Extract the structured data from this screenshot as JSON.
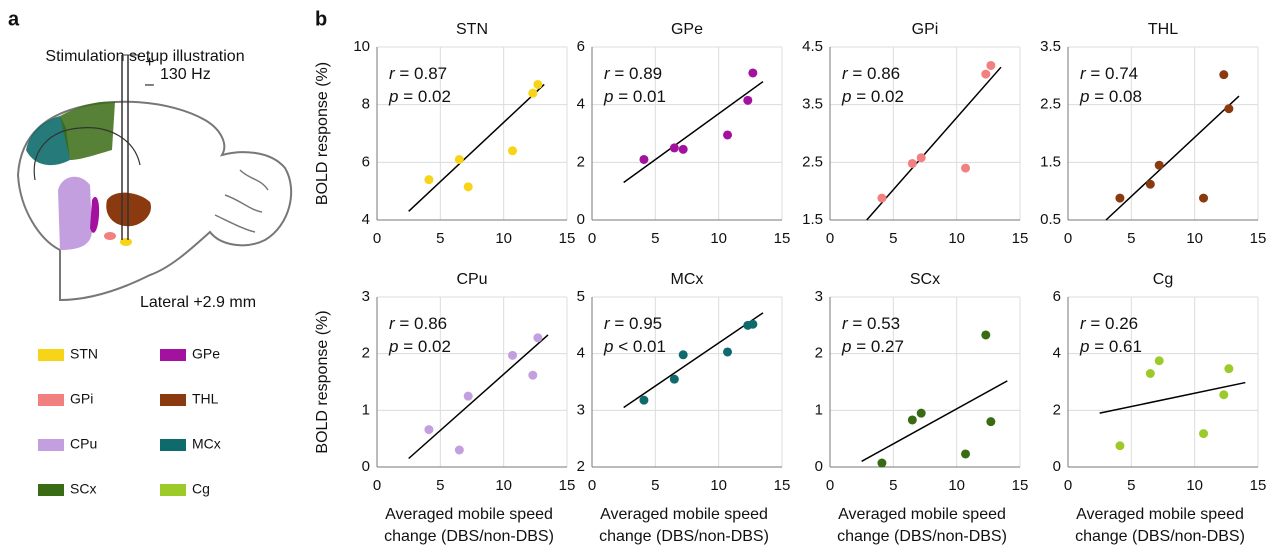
{
  "panel_a": {
    "label": "a",
    "title": "Stimulation setup illustration",
    "plus": "+",
    "minus": "–",
    "frequency": "130 Hz",
    "lateral": "Lateral +2.9 mm"
  },
  "panel_b_label": "b",
  "chart_data": [
    {
      "type": "scatter",
      "title": "STN",
      "color": "#f7d417",
      "x": [
        4.1,
        6.5,
        7.2,
        10.7,
        12.3,
        12.7
      ],
      "y": [
        5.4,
        6.1,
        5.15,
        6.4,
        8.4,
        8.7
      ],
      "fit": {
        "x": [
          2.5,
          13.2
        ],
        "y": [
          4.3,
          8.7
        ]
      },
      "xlim": [
        0,
        15
      ],
      "xticks": [
        0,
        5,
        10,
        15
      ],
      "ylim": [
        4,
        10
      ],
      "yticks": [
        4,
        6,
        8,
        10
      ],
      "annotations": [
        {
          "symbol": "r",
          "text": " = 0.87"
        },
        {
          "symbol": "p",
          "text": " = 0.02"
        }
      ],
      "ylabel": "BOLD response (%)",
      "xlabel": [
        "Averaged mobile speed",
        "change (DBS/non-DBS)"
      ],
      "grid": true
    },
    {
      "type": "scatter",
      "title": "GPe",
      "color": "#a2129e",
      "x": [
        4.1,
        6.5,
        7.2,
        10.7,
        12.3,
        12.7
      ],
      "y": [
        2.1,
        2.5,
        2.45,
        2.95,
        4.15,
        5.1
      ],
      "fit": {
        "x": [
          2.5,
          13.5
        ],
        "y": [
          1.3,
          4.8
        ]
      },
      "xlim": [
        0,
        15
      ],
      "xticks": [
        0,
        5,
        10,
        15
      ],
      "ylim": [
        0,
        6
      ],
      "yticks": [
        0,
        2,
        4,
        6
      ],
      "annotations": [
        {
          "symbol": "r",
          "text": " = 0.89"
        },
        {
          "symbol": "p",
          "text": " = 0.01"
        }
      ],
      "xlabel": [
        "Averaged mobile speed",
        "change (DBS/non-DBS)"
      ],
      "grid": true
    },
    {
      "type": "scatter",
      "title": "GPi",
      "color": "#f28080",
      "x": [
        4.1,
        6.5,
        7.2,
        10.7,
        12.3,
        12.7
      ],
      "y": [
        1.88,
        2.48,
        2.58,
        2.4,
        4.03,
        4.18
      ],
      "fit": {
        "x": [
          2.9,
          13.5
        ],
        "y": [
          1.5,
          4.15
        ]
      },
      "xlim": [
        0,
        15
      ],
      "xticks": [
        0,
        5,
        10,
        15
      ],
      "ylim": [
        1.5,
        4.5
      ],
      "yticks": [
        1.5,
        2.5,
        3.5,
        4.5
      ],
      "annotations": [
        {
          "symbol": "r",
          "text": " = 0.86"
        },
        {
          "symbol": "p",
          "text": " = 0.02"
        }
      ],
      "xlabel": [
        "Averaged mobile speed",
        "change (DBS/non-DBS)"
      ],
      "grid": true
    },
    {
      "type": "scatter",
      "title": "THL",
      "color": "#8b3a10",
      "x": [
        4.1,
        6.5,
        7.2,
        10.7,
        12.3,
        12.7
      ],
      "y": [
        0.88,
        1.12,
        1.45,
        0.88,
        3.02,
        2.43
      ],
      "fit": {
        "x": [
          3,
          13.5
        ],
        "y": [
          0.5,
          2.65
        ]
      },
      "xlim": [
        0,
        15
      ],
      "xticks": [
        0,
        5,
        10,
        15
      ],
      "ylim": [
        0.5,
        3.5
      ],
      "yticks": [
        0.5,
        1.5,
        2.5,
        3.5
      ],
      "annotations": [
        {
          "symbol": "r",
          "text": " = 0.74"
        },
        {
          "symbol": "p",
          "text": " = 0.08"
        }
      ],
      "xlabel": [
        "Averaged mobile speed",
        "change (DBS/non-DBS)"
      ],
      "grid": true
    },
    {
      "type": "scatter",
      "title": "CPu",
      "color": "#c39fe0",
      "x": [
        4.1,
        6.5,
        7.2,
        10.7,
        12.3,
        12.7
      ],
      "y": [
        0.66,
        0.3,
        1.25,
        1.97,
        1.62,
        2.28
      ],
      "fit": {
        "x": [
          2.5,
          13.5
        ],
        "y": [
          0.15,
          2.33
        ]
      },
      "xlim": [
        0,
        15
      ],
      "xticks": [
        0,
        5,
        10,
        15
      ],
      "ylim": [
        0,
        3
      ],
      "yticks": [
        0,
        1,
        2,
        3
      ],
      "annotations": [
        {
          "symbol": "r",
          "text": " = 0.86"
        },
        {
          "symbol": "p",
          "text": " = 0.02"
        }
      ],
      "ylabel": "BOLD response (%)",
      "xlabel": [
        "Averaged mobile speed",
        "change (DBS/non-DBS)"
      ],
      "grid": true
    },
    {
      "type": "scatter",
      "title": "MCx",
      "color": "#0f6b6b",
      "x": [
        4.1,
        6.5,
        7.2,
        10.7,
        12.3,
        12.7
      ],
      "y": [
        3.18,
        3.55,
        3.98,
        4.03,
        4.5,
        4.52
      ],
      "fit": {
        "x": [
          2.5,
          13.5
        ],
        "y": [
          3.05,
          4.72
        ]
      },
      "xlim": [
        0,
        15
      ],
      "xticks": [
        0,
        5,
        10,
        15
      ],
      "ylim": [
        2,
        5
      ],
      "yticks": [
        2,
        3,
        4,
        5
      ],
      "annotations": [
        {
          "symbol": "r",
          "text": " = 0.95"
        },
        {
          "symbol": "p",
          "text": " < 0.01"
        }
      ],
      "xlabel": [
        "Averaged mobile speed",
        "change (DBS/non-DBS)"
      ],
      "grid": true
    },
    {
      "type": "scatter",
      "title": "SCx",
      "color": "#386b14",
      "x": [
        4.1,
        6.5,
        7.2,
        10.7,
        12.3,
        12.7
      ],
      "y": [
        0.07,
        0.83,
        0.95,
        0.23,
        2.33,
        0.8
      ],
      "fit": {
        "x": [
          2.5,
          14
        ],
        "y": [
          0.1,
          1.52
        ]
      },
      "xlim": [
        0,
        15
      ],
      "xticks": [
        0,
        5,
        10,
        15
      ],
      "ylim": [
        0,
        3
      ],
      "yticks": [
        0,
        1,
        2,
        3
      ],
      "annotations": [
        {
          "symbol": "r",
          "text": " = 0.53"
        },
        {
          "symbol": "p",
          "text": " = 0.27"
        }
      ],
      "xlabel": [
        "Averaged mobile speed",
        "change (DBS/non-DBS)"
      ],
      "grid": true
    },
    {
      "type": "scatter",
      "title": "Cg",
      "color": "#9ccb29",
      "x": [
        4.1,
        6.5,
        7.2,
        10.7,
        12.3,
        12.7
      ],
      "y": [
        0.75,
        3.3,
        3.75,
        1.18,
        2.55,
        3.47
      ],
      "fit": {
        "x": [
          2.5,
          14
        ],
        "y": [
          1.9,
          2.98
        ]
      },
      "xlim": [
        0,
        15
      ],
      "xticks": [
        0,
        5,
        10,
        15
      ],
      "ylim": [
        0,
        6
      ],
      "yticks": [
        0,
        2,
        4,
        6
      ],
      "annotations": [
        {
          "symbol": "r",
          "text": " = 0.26"
        },
        {
          "symbol": "p",
          "text": " = 0.61"
        }
      ],
      "xlabel": [
        "Averaged mobile speed",
        "change (DBS/non-DBS)"
      ],
      "grid": true
    }
  ]
}
